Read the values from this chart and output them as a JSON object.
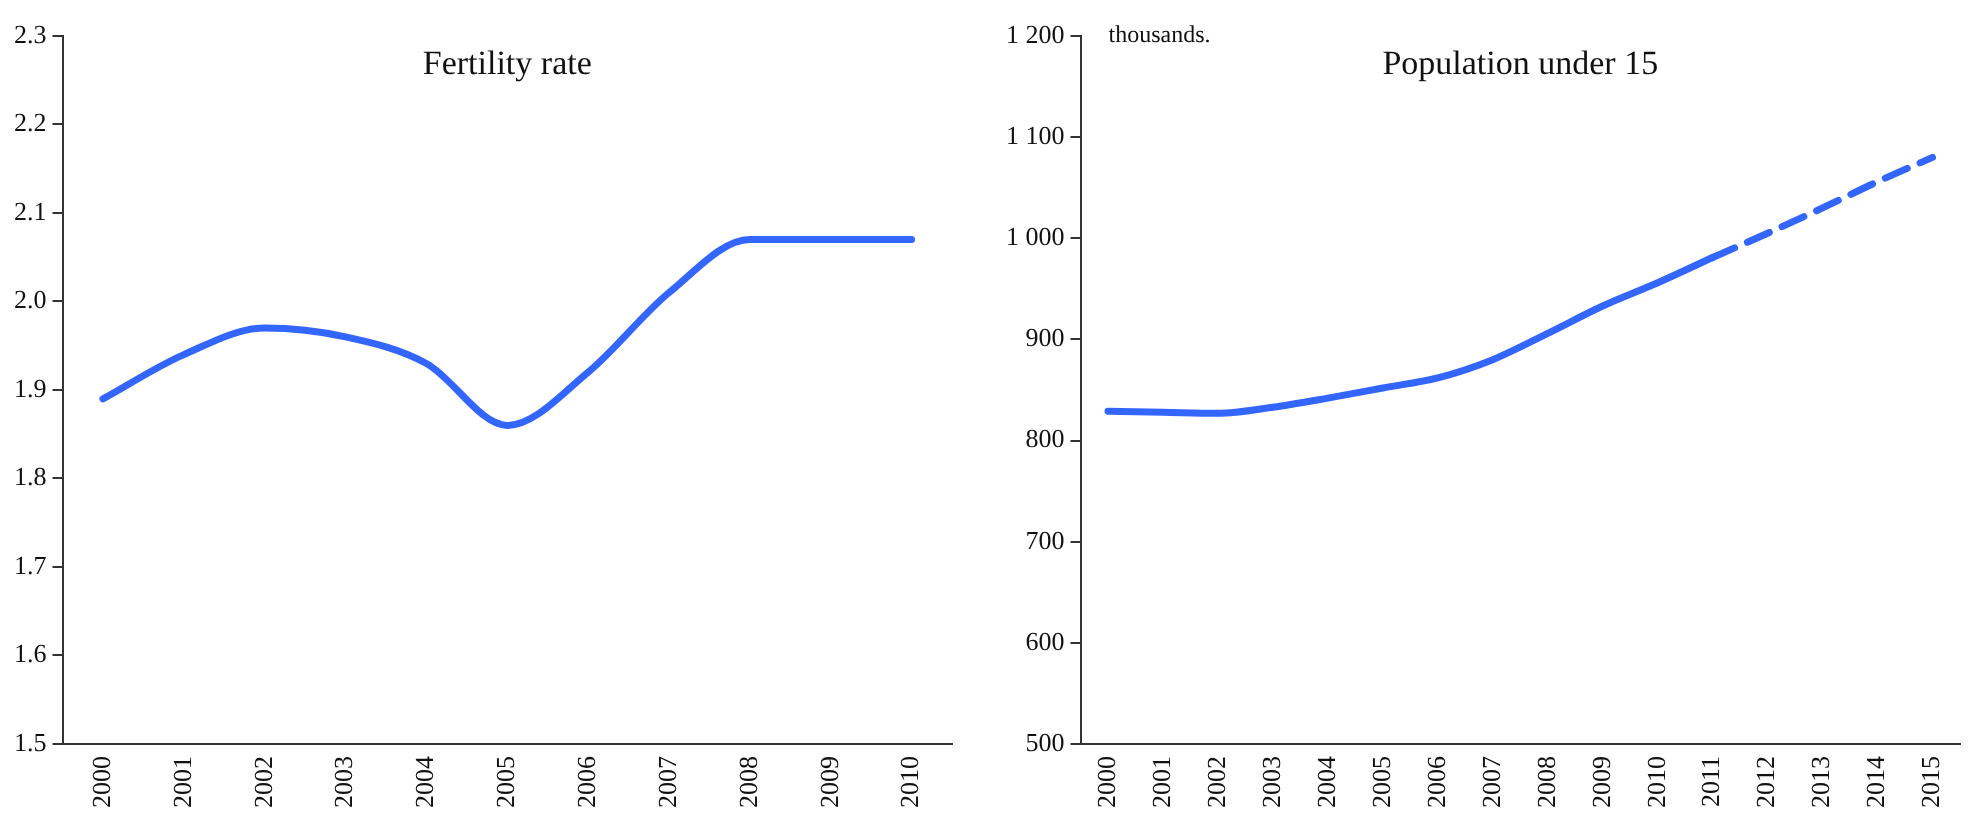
{
  "chart_data": [
    {
      "type": "line",
      "title": "Fertility rate",
      "categories": [
        "2000",
        "2001",
        "2002",
        "2003",
        "2004",
        "2005",
        "2006",
        "2007",
        "2008",
        "2009",
        "2010"
      ],
      "series": [
        {
          "color": "#3366ff",
          "values": [
            1.89,
            1.94,
            1.97,
            1.96,
            1.93,
            1.86,
            1.92,
            2.01,
            2.07,
            2.07,
            2.07
          ]
        }
      ],
      "ylim": [
        1.5,
        2.3
      ],
      "yticks": [
        {
          "value": 1.5,
          "label": "1.5"
        },
        {
          "value": 1.6,
          "label": "1.6"
        },
        {
          "value": 1.7,
          "label": "1.7"
        },
        {
          "value": 1.8,
          "label": "1.8"
        },
        {
          "value": 1.9,
          "label": "1.9"
        },
        {
          "value": 2.0,
          "label": "2.0"
        },
        {
          "value": 2.1,
          "label": "2.1"
        },
        {
          "value": 2.2,
          "label": "2.2"
        },
        {
          "value": 2.3,
          "label": "2.3"
        }
      ],
      "grid": false,
      "legend": false,
      "marker": "none",
      "line_style": "solid"
    },
    {
      "type": "line",
      "title": "Population under 15",
      "ylabel": "thousands.",
      "categories": [
        "2000",
        "2001",
        "2002",
        "2003",
        "2004",
        "2005",
        "2006",
        "2007",
        "2008",
        "2009",
        "2010",
        "2011",
        "2012",
        "2013",
        "2014",
        "2015"
      ],
      "series": [
        {
          "color": "#3366ff",
          "line_style": "solid",
          "values": [
            829,
            828,
            827,
            833,
            842,
            852,
            862,
            880,
            906,
            933,
            956,
            981,
            null,
            null,
            null,
            null
          ]
        },
        {
          "color": "#3366ff",
          "line_style": "dashed",
          "values": [
            null,
            null,
            null,
            null,
            null,
            null,
            null,
            null,
            null,
            null,
            null,
            981,
            1005,
            1030,
            1056,
            1080
          ]
        }
      ],
      "ylim": [
        500,
        1200
      ],
      "yticks": [
        500,
        600,
        700,
        800,
        900,
        {
          "value": 1000,
          "label": "1 000"
        },
        {
          "value": 1100,
          "label": "1 100"
        },
        {
          "value": 1200,
          "label": "1 200"
        }
      ],
      "grid": false,
      "legend": false,
      "marker": "none"
    }
  ]
}
